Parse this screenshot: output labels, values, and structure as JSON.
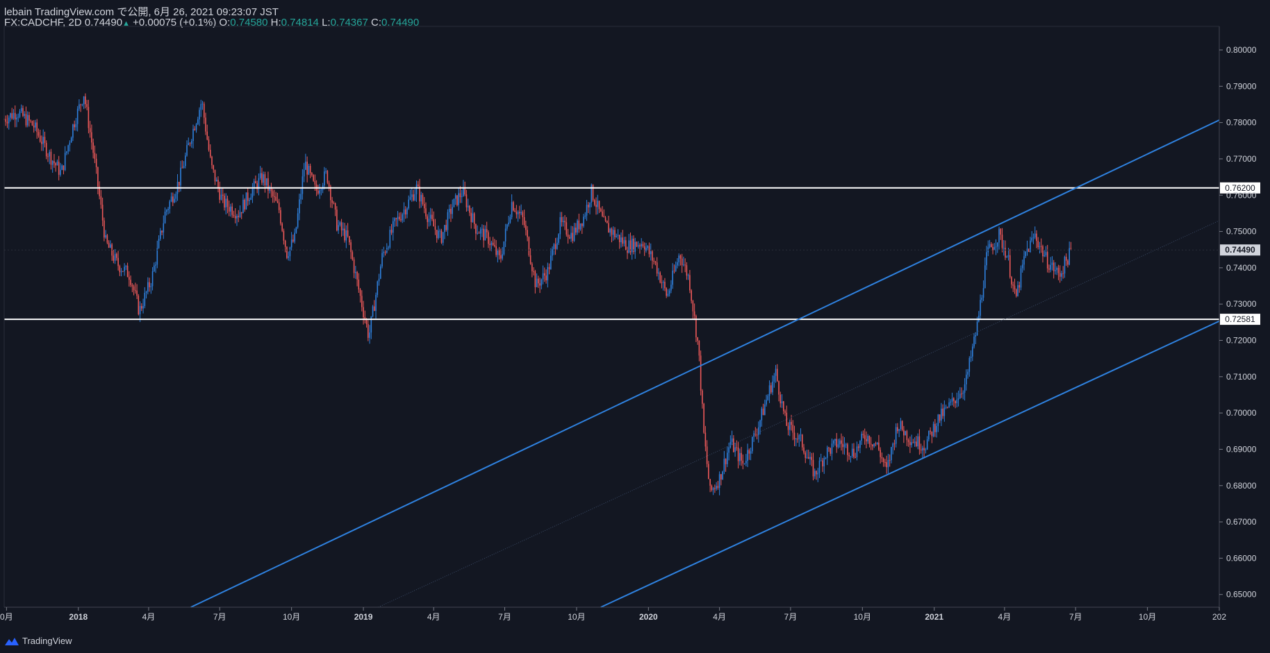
{
  "header": {
    "publish_line": "lebain TradingView.com で公開, 6月 26, 2021 09:23:07 JST",
    "symbol": "FX:CADCHF, 2D",
    "last": "0.74490",
    "change": "+0.00075 (+0.1%)",
    "o_label": "O:",
    "o_val": "0.74580",
    "h_label": "H:",
    "h_val": "0.74814",
    "l_label": "L:",
    "l_val": "0.74367",
    "c_label": "C:",
    "c_val": "0.74490"
  },
  "footer": {
    "brand": "TradingView"
  },
  "colors": {
    "bg": "#131722",
    "up": "#2f82e0",
    "down": "#f05a5a",
    "trend": "#2f82e0",
    "level": "#ffffff",
    "text": "#d1d4dc"
  },
  "chart_data": {
    "type": "candlestick",
    "symbol": "FX:CADCHF",
    "interval": "2D",
    "ylim": [
      0.6465,
      0.8065
    ],
    "y_ticks": [
      "0.80000",
      "0.79000",
      "0.78000",
      "0.77000",
      "0.76000",
      "0.75000",
      "0.74000",
      "0.73000",
      "0.72000",
      "0.71000",
      "0.70000",
      "0.69000",
      "0.68000",
      "0.67000",
      "0.66000",
      "0.65000"
    ],
    "x_ticks": [
      {
        "label": "0月",
        "date": "2017-10-01"
      },
      {
        "label": "2018",
        "date": "2018-01-01"
      },
      {
        "label": "4月",
        "date": "2018-04-01"
      },
      {
        "label": "7月",
        "date": "2018-07-01"
      },
      {
        "label": "10月",
        "date": "2018-10-01"
      },
      {
        "label": "2019",
        "date": "2019-01-01"
      },
      {
        "label": "4月",
        "date": "2019-04-01"
      },
      {
        "label": "7月",
        "date": "2019-07-01"
      },
      {
        "label": "10月",
        "date": "2019-10-01"
      },
      {
        "label": "2020",
        "date": "2020-01-01"
      },
      {
        "label": "4月",
        "date": "2020-04-01"
      },
      {
        "label": "7月",
        "date": "2020-07-01"
      },
      {
        "label": "10月",
        "date": "2020-10-01"
      },
      {
        "label": "2021",
        "date": "2021-01-01"
      },
      {
        "label": "4月",
        "date": "2021-04-01"
      },
      {
        "label": "7月",
        "date": "2021-07-01"
      },
      {
        "label": "10月",
        "date": "2021-10-01"
      },
      {
        "label": "202",
        "date": "2022-01-01"
      }
    ],
    "close_path": [
      [
        "2017-09-28",
        0.781
      ],
      [
        "2017-10-15",
        0.783
      ],
      [
        "2017-11-05",
        0.779
      ],
      [
        "2017-11-25",
        0.771
      ],
      [
        "2017-12-10",
        0.766
      ],
      [
        "2017-12-25",
        0.779
      ],
      [
        "2018-01-08",
        0.788
      ],
      [
        "2018-01-20",
        0.772
      ],
      [
        "2018-02-05",
        0.747
      ],
      [
        "2018-02-20",
        0.741
      ],
      [
        "2018-03-08",
        0.738
      ],
      [
        "2018-03-20",
        0.728
      ],
      [
        "2018-04-05",
        0.737
      ],
      [
        "2018-04-22",
        0.755
      ],
      [
        "2018-05-10",
        0.764
      ],
      [
        "2018-05-25",
        0.776
      ],
      [
        "2018-06-08",
        0.786
      ],
      [
        "2018-06-20",
        0.768
      ],
      [
        "2018-07-05",
        0.758
      ],
      [
        "2018-07-25",
        0.755
      ],
      [
        "2018-08-10",
        0.761
      ],
      [
        "2018-08-25",
        0.765
      ],
      [
        "2018-09-15",
        0.756
      ],
      [
        "2018-09-25",
        0.744
      ],
      [
        "2018-10-05",
        0.748
      ],
      [
        "2018-10-18",
        0.769
      ],
      [
        "2018-11-01",
        0.761
      ],
      [
        "2018-11-15",
        0.766
      ],
      [
        "2018-11-28",
        0.752
      ],
      [
        "2018-12-12",
        0.748
      ],
      [
        "2018-12-25",
        0.735
      ],
      [
        "2019-01-08",
        0.721
      ],
      [
        "2019-01-25",
        0.743
      ],
      [
        "2019-02-10",
        0.752
      ],
      [
        "2019-02-25",
        0.757
      ],
      [
        "2019-03-10",
        0.762
      ],
      [
        "2019-03-25",
        0.754
      ],
      [
        "2019-04-10",
        0.748
      ],
      [
        "2019-04-25",
        0.757
      ],
      [
        "2019-05-08",
        0.761
      ],
      [
        "2019-05-25",
        0.751
      ],
      [
        "2019-06-10",
        0.748
      ],
      [
        "2019-06-25",
        0.742
      ],
      [
        "2019-07-10",
        0.758
      ],
      [
        "2019-07-25",
        0.753
      ],
      [
        "2019-08-10",
        0.735
      ],
      [
        "2019-08-25",
        0.739
      ],
      [
        "2019-09-10",
        0.752
      ],
      [
        "2019-09-25",
        0.749
      ],
      [
        "2019-10-10",
        0.754
      ],
      [
        "2019-10-20",
        0.761
      ],
      [
        "2019-11-05",
        0.752
      ],
      [
        "2019-11-20",
        0.749
      ],
      [
        "2019-12-05",
        0.746
      ],
      [
        "2019-12-25",
        0.747
      ],
      [
        "2020-01-10",
        0.741
      ],
      [
        "2020-01-25",
        0.732
      ],
      [
        "2020-02-10",
        0.744
      ],
      [
        "2020-02-22",
        0.737
      ],
      [
        "2020-03-05",
        0.718
      ],
      [
        "2020-03-12",
        0.694
      ],
      [
        "2020-03-20",
        0.678
      ],
      [
        "2020-04-01",
        0.682
      ],
      [
        "2020-04-15",
        0.692
      ],
      [
        "2020-05-01",
        0.686
      ],
      [
        "2020-05-20",
        0.696
      ],
      [
        "2020-06-05",
        0.707
      ],
      [
        "2020-06-12",
        0.711
      ],
      [
        "2020-06-25",
        0.697
      ],
      [
        "2020-07-15",
        0.692
      ],
      [
        "2020-08-01",
        0.683
      ],
      [
        "2020-08-15",
        0.689
      ],
      [
        "2020-09-01",
        0.692
      ],
      [
        "2020-09-20",
        0.689
      ],
      [
        "2020-10-05",
        0.694
      ],
      [
        "2020-10-20",
        0.691
      ],
      [
        "2020-11-01",
        0.684
      ],
      [
        "2020-11-15",
        0.697
      ],
      [
        "2020-12-01",
        0.693
      ],
      [
        "2020-12-20",
        0.691
      ],
      [
        "2021-01-05",
        0.698
      ],
      [
        "2021-01-25",
        0.703
      ],
      [
        "2021-02-10",
        0.708
      ],
      [
        "2021-02-25",
        0.724
      ],
      [
        "2021-03-10",
        0.744
      ],
      [
        "2021-03-25",
        0.749
      ],
      [
        "2021-04-05",
        0.743
      ],
      [
        "2021-04-15",
        0.731
      ],
      [
        "2021-04-28",
        0.744
      ],
      [
        "2021-05-10",
        0.749
      ],
      [
        "2021-05-25",
        0.742
      ],
      [
        "2021-06-10",
        0.738
      ],
      [
        "2021-06-26",
        0.7449
      ]
    ],
    "horizontal_levels": [
      0.762,
      0.72581
    ],
    "level_labels": [
      "0.76200",
      "0.72581"
    ],
    "trend_lines": [
      {
        "from": [
          "2018-05-25",
          0.6465
        ],
        "to": [
          "2022-01-01",
          0.7807
        ]
      },
      {
        "from": [
          "2019-11-01",
          0.6465
        ],
        "to": [
          "2022-01-01",
          0.7253
        ]
      }
    ],
    "mid_line": {
      "from": [
        "2019-01-20",
        0.6465
      ],
      "to": [
        "2022-01-01",
        0.753
      ]
    },
    "last_price": 0.7449,
    "last_price_label": "0.74490"
  }
}
